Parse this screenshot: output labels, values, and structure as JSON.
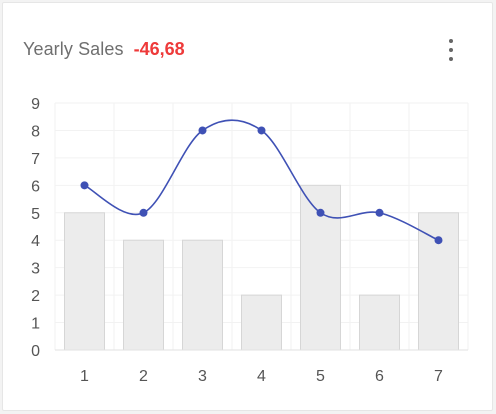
{
  "card": {
    "title": "Yearly Sales",
    "value": "-46,68",
    "menu_icon": "more-vertical-icon"
  },
  "colors": {
    "title": "#6f6f6f",
    "value": "#ee3a3a",
    "line": "#3f51b5",
    "bar_fill": "#ececec",
    "bar_stroke": "#d6d6d6",
    "grid": "#f2f2f2",
    "axis_text": "#555555"
  },
  "chart_data": {
    "type": "bar",
    "categories": [
      "1",
      "2",
      "3",
      "4",
      "5",
      "6",
      "7"
    ],
    "series": [
      {
        "values": [
          5,
          4,
          4,
          2,
          6,
          2,
          5
        ],
        "kind": "bar"
      },
      {
        "values": [
          6,
          5,
          8,
          8,
          5,
          5,
          4
        ],
        "kind": "line",
        "smooth": true
      }
    ],
    "yticks": [
      "0",
      "1",
      "2",
      "3",
      "4",
      "5",
      "6",
      "7",
      "8",
      "9"
    ],
    "ylim": [
      0,
      9
    ],
    "grid": true
  }
}
